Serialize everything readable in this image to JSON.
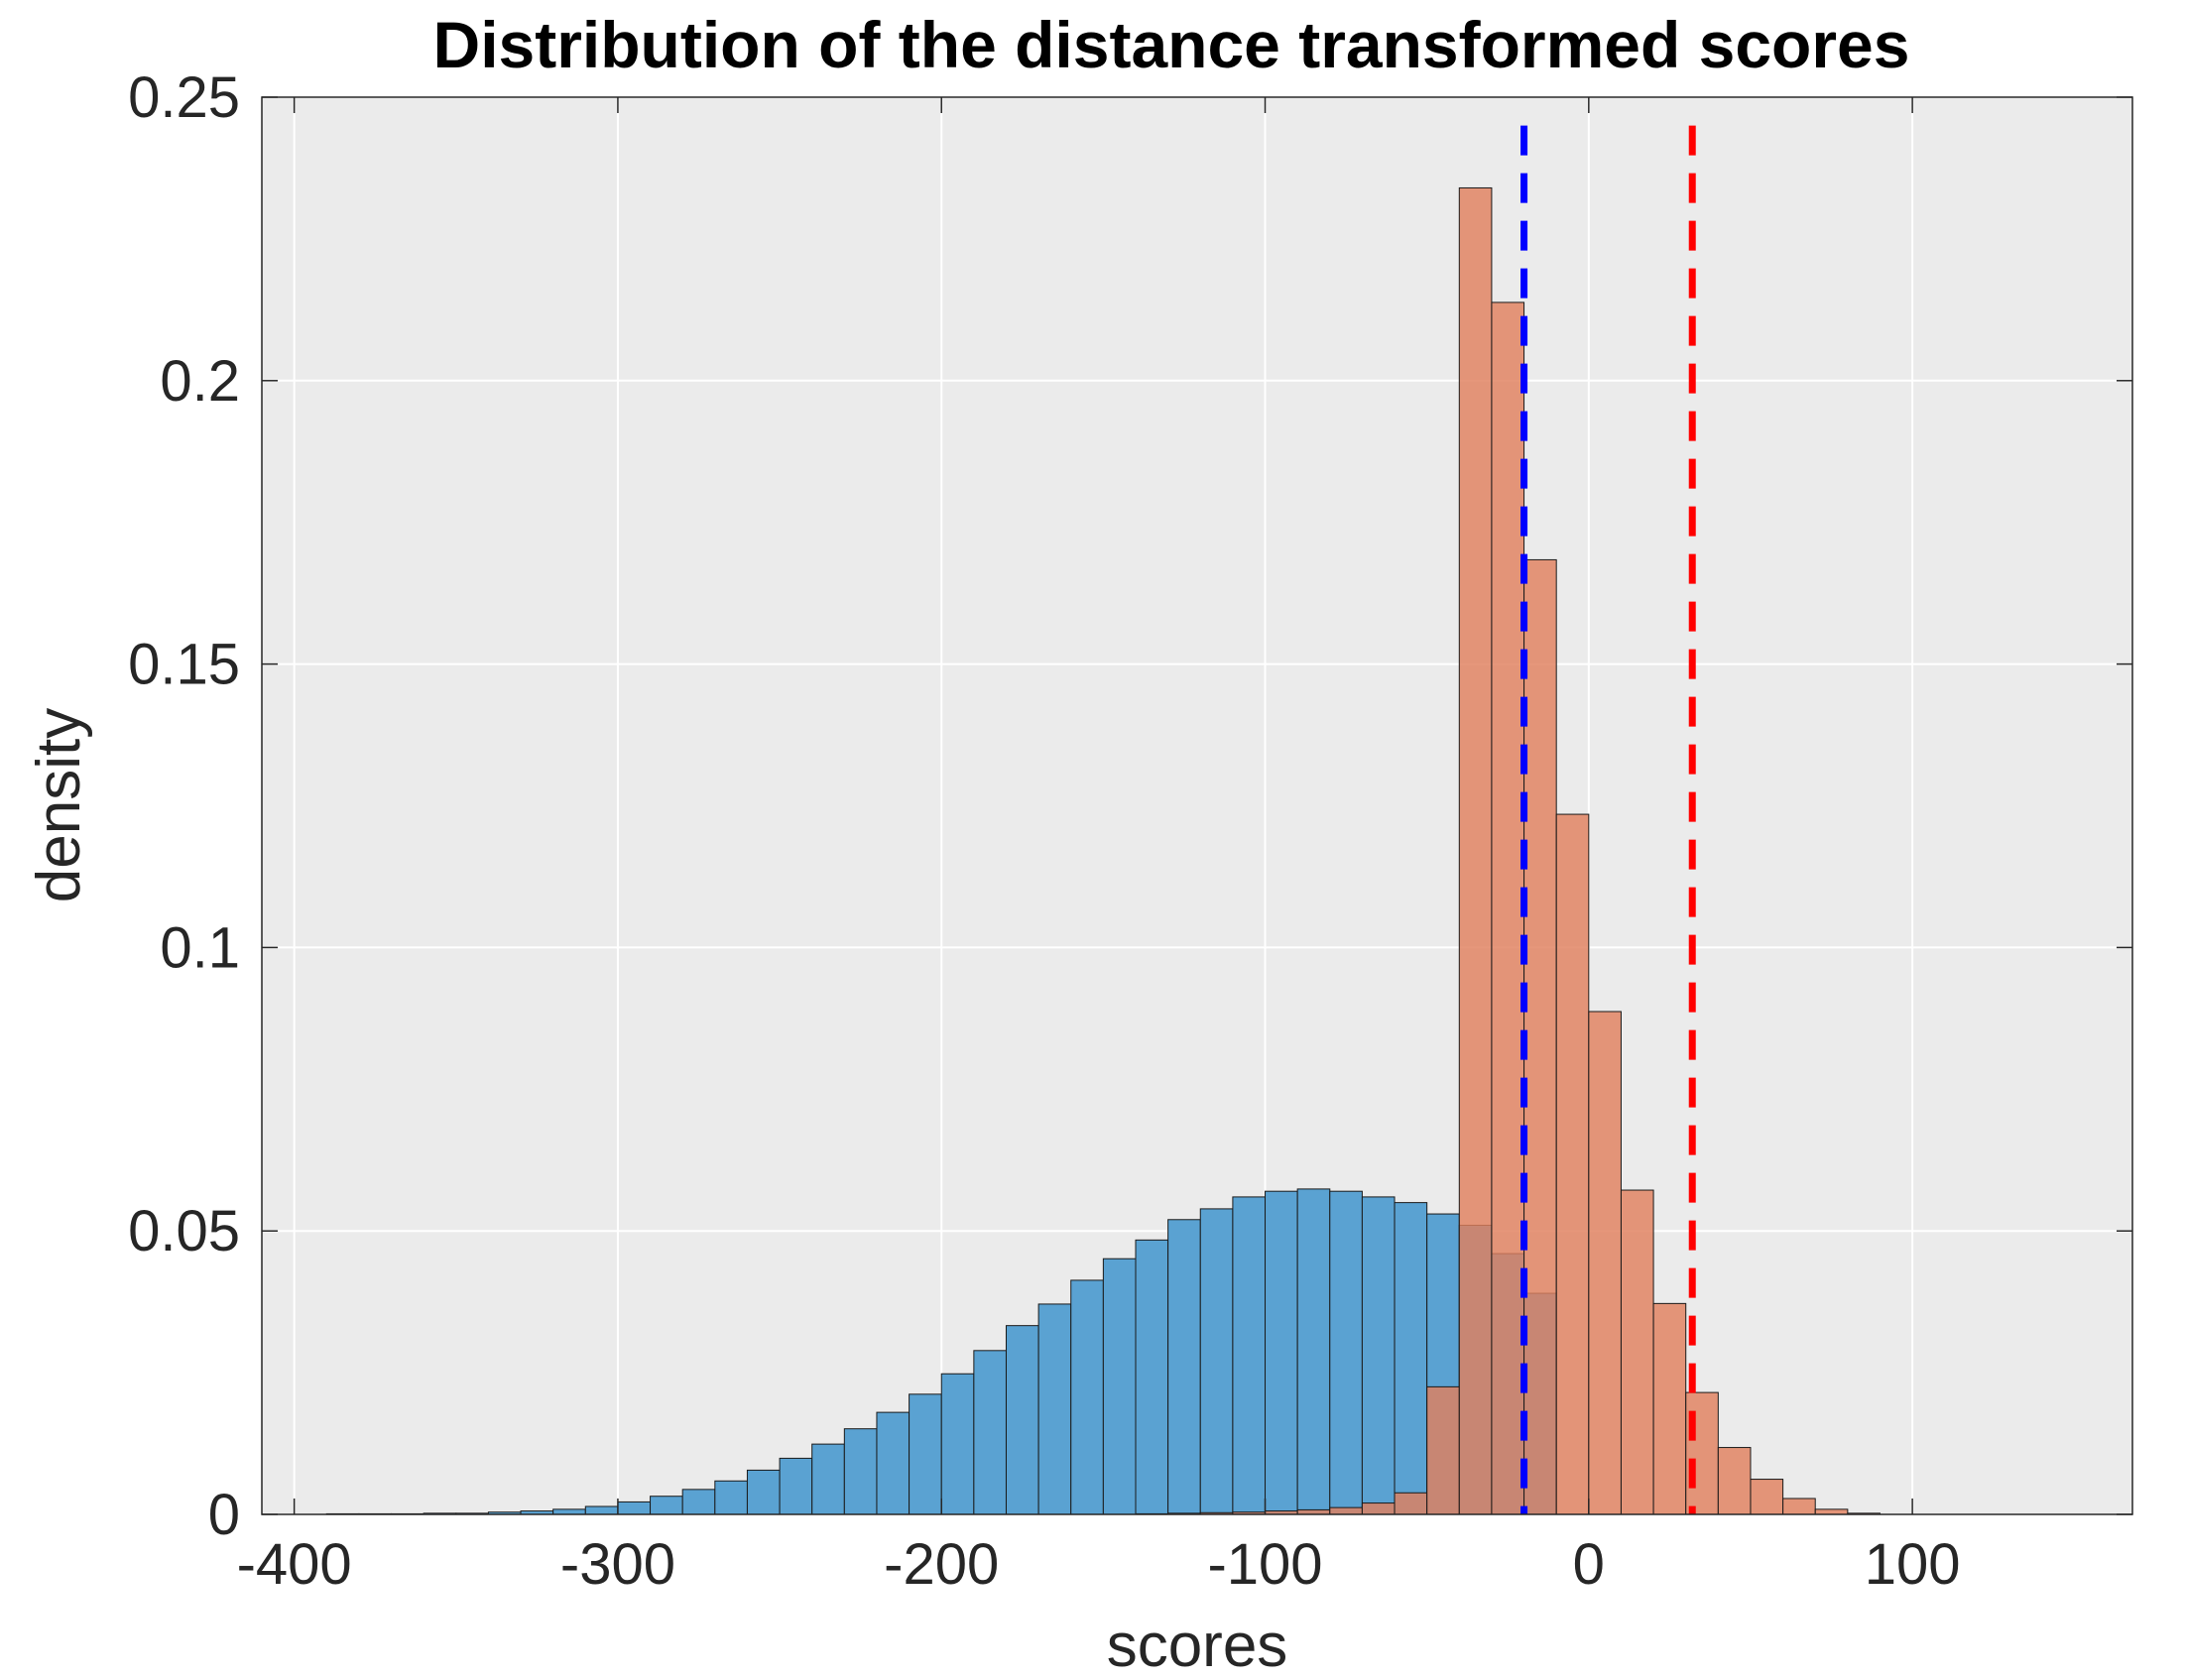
{
  "chart_data": {
    "type": "bar",
    "title": "Distribution of the distance transformed scores",
    "xlabel": "scores",
    "ylabel": "density",
    "xlim": [
      -410,
      168
    ],
    "ylim": [
      0,
      0.25
    ],
    "xticks": [
      -400,
      -300,
      -200,
      -100,
      0,
      100
    ],
    "xtick_labels": [
      "-400",
      "-300",
      "-200",
      "-100",
      "0",
      "100"
    ],
    "yticks": [
      0,
      0.05,
      0.1,
      0.15,
      0.2,
      0.25
    ],
    "ytick_labels": [
      "0",
      "0.05",
      "0.1",
      "0.15",
      "0.2",
      "0.25"
    ],
    "grid": true,
    "background_color": "#ebebeb",
    "bin_width": 10,
    "series": [
      {
        "color": "#5aa2d2",
        "bin_edges_start": -390,
        "values": [
          0.0001,
          0.0001,
          0.0001,
          0.0002,
          0.0002,
          0.0004,
          0.0006,
          0.0009,
          0.0014,
          0.0022,
          0.0032,
          0.0044,
          0.0059,
          0.0078,
          0.0099,
          0.0124,
          0.0151,
          0.018,
          0.0212,
          0.0248,
          0.0289,
          0.0333,
          0.0371,
          0.0413,
          0.0451,
          0.0484,
          0.052,
          0.0539,
          0.056,
          0.057,
          0.0574,
          0.057,
          0.056,
          0.055,
          0.053,
          0.051,
          0.046,
          0.039
        ]
      },
      {
        "color": "#e0805e",
        "bin_edges_start": -140,
        "values": [
          0.0001,
          0.0002,
          0.0003,
          0.0004,
          0.0006,
          0.0008,
          0.0012,
          0.002,
          0.0038,
          0.0225,
          0.234,
          0.2138,
          0.1684,
          0.1235,
          0.0887,
          0.0572,
          0.0372,
          0.0215,
          0.0118,
          0.0062,
          0.0028,
          0.0009,
          0.0002
        ]
      }
    ],
    "reference_lines": [
      {
        "x": -20,
        "color": "#0000ff",
        "style": "dashed"
      },
      {
        "x": 32,
        "color": "#ff0000",
        "style": "dashed"
      }
    ]
  }
}
